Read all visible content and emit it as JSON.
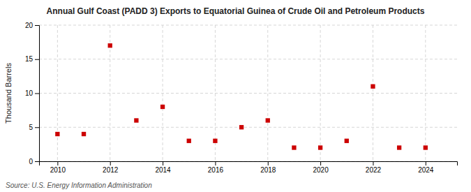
{
  "chart_data": {
    "type": "scatter",
    "title": "Annual Gulf Coast (PADD 3) Exports to Equatorial Guinea of Crude Oil and Petroleum Products",
    "ylabel": "Thousand Barrels",
    "source": "Source: U.S. Energy Information Administration",
    "x": [
      2010,
      2011,
      2012,
      2013,
      2014,
      2015,
      2016,
      2017,
      2018,
      2019,
      2020,
      2021,
      2022,
      2023,
      2024
    ],
    "values": [
      4.0,
      4.0,
      17.0,
      6.0,
      8.0,
      3.0,
      3.0,
      5.0,
      6.0,
      2.0,
      2.0,
      3.0,
      11.0,
      2.0,
      2.0
    ],
    "color": "#cc0000",
    "marker": "square",
    "xlim": [
      2009.3,
      2025.2
    ],
    "xticks": [
      2010,
      2012,
      2014,
      2016,
      2018,
      2020,
      2022,
      2024
    ],
    "ylim": [
      0,
      20
    ],
    "yticks": [
      0,
      5,
      10,
      15,
      20
    ],
    "grid": true
  }
}
